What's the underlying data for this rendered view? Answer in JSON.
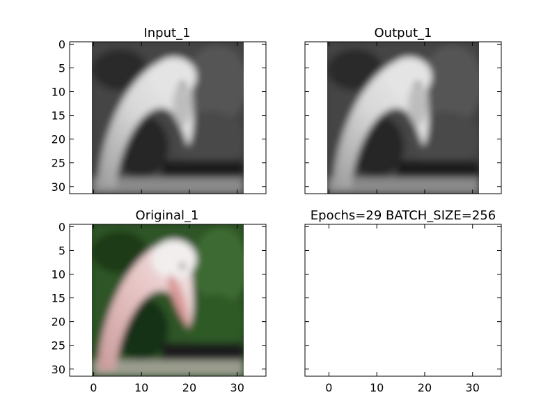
{
  "chart_data": [
    {
      "type": "image",
      "title": "Input_1",
      "image": "grayscale-bird",
      "xlim": [
        -5,
        36
      ],
      "ylim": [
        31.5,
        -0.5
      ],
      "xticks": [
        0,
        10,
        20,
        30
      ],
      "yticks": [
        0,
        5,
        10,
        15,
        20,
        25,
        30
      ],
      "show_xtick_labels": false,
      "show_ytick_labels": true
    },
    {
      "type": "image",
      "title": "Output_1",
      "image": "grayscale-bird",
      "xlim": [
        -5,
        36
      ],
      "ylim": [
        31.5,
        -0.5
      ],
      "xticks": [
        0,
        10,
        20,
        30
      ],
      "yticks": [
        0,
        5,
        10,
        15,
        20,
        25,
        30
      ],
      "show_xtick_labels": false,
      "show_ytick_labels": false
    },
    {
      "type": "image",
      "title": "Original_1",
      "image": "color-bird",
      "xlim": [
        -5,
        36
      ],
      "ylim": [
        31.5,
        -0.5
      ],
      "xticks": [
        0,
        10,
        20,
        30
      ],
      "yticks": [
        0,
        5,
        10,
        15,
        20,
        25,
        30
      ],
      "show_xtick_labels": true,
      "show_ytick_labels": true
    },
    {
      "type": "empty",
      "title": "Epochs=29 BATCH_SIZE=256",
      "xlim": [
        -5,
        36
      ],
      "ylim": [
        31.5,
        -0.5
      ],
      "xticks": [
        0,
        10,
        20,
        30
      ],
      "yticks": [
        0,
        5,
        10,
        15,
        20,
        25,
        30
      ],
      "show_xtick_labels": true,
      "show_ytick_labels": false
    }
  ]
}
